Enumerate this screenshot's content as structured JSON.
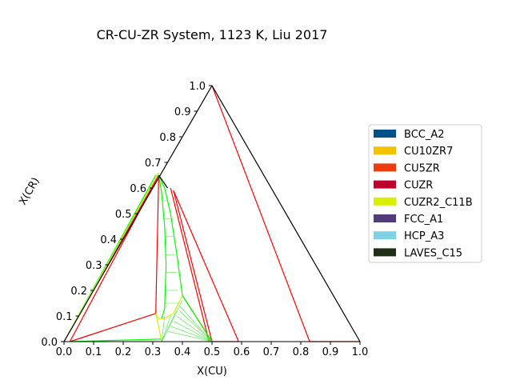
{
  "chart_data": {
    "type": "ternary",
    "title": "CR-CU-ZR System, 1123 K, Liu 2017",
    "xlabel": "X(CU)",
    "ylabel": "X(CR)",
    "x_ticks": [
      "0.0",
      "0.1",
      "0.2",
      "0.3",
      "0.4",
      "0.5",
      "0.6",
      "0.7",
      "0.8",
      "0.9",
      "1.0"
    ],
    "y_ticks": [
      "0.0",
      "0.1",
      "0.2",
      "0.3",
      "0.4",
      "0.5",
      "0.6",
      "0.7",
      "0.8",
      "0.9",
      "1.0"
    ],
    "legend": [
      {
        "name": "BCC_A2",
        "color": "#00508a"
      },
      {
        "name": "CU10ZR7",
        "color": "#f3c300"
      },
      {
        "name": "CU5ZR",
        "color": "#ef3b10"
      },
      {
        "name": "CUZR",
        "color": "#c0002c"
      },
      {
        "name": "CUZR2_C11B",
        "color": "#d8f000"
      },
      {
        "name": "FCC_A1",
        "color": "#533a79"
      },
      {
        "name": "HCP_A3",
        "color": "#7fd1e8"
      },
      {
        "name": "LAVES_C15",
        "color": "#1f2f14"
      }
    ],
    "phase_boundaries": [
      {
        "color": "#ff0000",
        "points": [
          [
            0.5,
            1.0
          ],
          [
            0.83,
            0.0
          ]
        ]
      },
      {
        "color": "#ff0000",
        "points": [
          [
            0.37,
            0.59
          ],
          [
            0.59,
            0.0
          ]
        ]
      },
      {
        "color": "#ff0000",
        "points": [
          [
            0.36,
            0.6
          ],
          [
            0.49,
            0.0
          ]
        ]
      },
      {
        "color": "#ff0000",
        "points": [
          [
            0.37,
            0.59
          ],
          [
            0.5,
            0.0
          ]
        ]
      },
      {
        "color": "#ff0000",
        "points": [
          [
            0.31,
            0.11
          ],
          [
            0.02,
            0.0
          ]
        ]
      },
      {
        "color": "#ff0000",
        "points": [
          [
            0.31,
            0.11
          ],
          [
            0.32,
            0.65
          ]
        ]
      },
      {
        "color": "#ff0000",
        "points": [
          [
            0.5,
            0.0
          ],
          [
            0.59,
            0.0
          ]
        ]
      },
      {
        "color": "#ff0000",
        "points": [
          [
            0.83,
            0.0
          ],
          [
            1.0,
            0.0
          ]
        ]
      },
      {
        "color": "#ff0000",
        "points": [
          [
            0.4,
            0.18
          ],
          [
            0.5,
            0.0
          ]
        ]
      },
      {
        "color": "#ff0000",
        "points": [
          [
            0.0,
            0.0
          ],
          [
            0.32,
            0.65
          ]
        ]
      },
      {
        "color": "#ff0000",
        "points": [
          [
            0.02,
            0.0
          ],
          [
            0.32,
            0.65
          ]
        ]
      },
      {
        "color": "#00ff00",
        "points": [
          [
            0.32,
            0.65
          ],
          [
            0.33,
            0.58
          ],
          [
            0.34,
            0.45
          ],
          [
            0.345,
            0.3
          ],
          [
            0.34,
            0.13
          ],
          [
            0.33,
            0.09
          ]
        ]
      },
      {
        "color": "#00ff00",
        "points": [
          [
            0.32,
            0.65
          ],
          [
            0.34,
            0.6
          ],
          [
            0.36,
            0.5
          ],
          [
            0.38,
            0.35
          ],
          [
            0.4,
            0.18
          ]
        ]
      },
      {
        "color": "#00ff00",
        "points": [
          [
            0.4,
            0.18
          ],
          [
            0.5,
            0.0
          ]
        ]
      },
      {
        "color": "#00ff00",
        "points": [
          [
            0.02,
            0.0
          ],
          [
            0.33,
            0.01
          ]
        ]
      },
      {
        "color": "#00ff00",
        "points": [
          [
            0.0,
            0.0
          ],
          [
            0.31,
            0.65
          ]
        ]
      },
      {
        "color": "#d8f000",
        "points": [
          [
            0.31,
            0.11
          ],
          [
            0.32,
            0.09
          ],
          [
            0.34,
            0.09
          ],
          [
            0.37,
            0.11
          ],
          [
            0.4,
            0.18
          ]
        ]
      },
      {
        "color": "#d8f000",
        "points": [
          [
            0.31,
            0.11
          ],
          [
            0.33,
            0.0
          ]
        ]
      },
      {
        "color": "#d8f000",
        "points": [
          [
            0.0,
            0.0
          ],
          [
            0.32,
            0.66
          ]
        ]
      },
      {
        "color": "#000000",
        "points": [
          [
            0.0,
            0.0
          ],
          [
            0.5,
            1.0
          ]
        ]
      },
      {
        "color": "#000000",
        "points": [
          [
            0.5,
            1.0
          ],
          [
            1.0,
            0.0
          ]
        ]
      },
      {
        "color": "#000000",
        "points": [
          [
            0.32,
            0.65
          ],
          [
            0.35,
            0.6
          ]
        ]
      }
    ],
    "tie_line_fans": [
      {
        "color": "#44ee44",
        "apex": [
          0.33,
          0.0
        ],
        "ends": [
          [
            0.34,
            0.1
          ],
          [
            0.36,
            0.1
          ],
          [
            0.38,
            0.12
          ],
          [
            0.4,
            0.16
          ]
        ]
      },
      {
        "color": "#44ee44",
        "apex": [
          0.5,
          0.0
        ],
        "ends": [
          [
            0.39,
            0.14
          ],
          [
            0.39,
            0.12
          ],
          [
            0.38,
            0.1
          ],
          [
            0.37,
            0.08
          ],
          [
            0.36,
            0.06
          ],
          [
            0.35,
            0.04
          ]
        ]
      },
      {
        "color": "#44ee44",
        "from": [
          [
            0.325,
            0.62
          ],
          [
            0.33,
            0.55
          ],
          [
            0.335,
            0.48
          ],
          [
            0.34,
            0.41
          ],
          [
            0.34,
            0.34
          ],
          [
            0.345,
            0.27
          ],
          [
            0.345,
            0.2
          ],
          [
            0.34,
            0.15
          ]
        ],
        "to": [
          [
            0.335,
            0.62
          ],
          [
            0.35,
            0.55
          ],
          [
            0.36,
            0.48
          ],
          [
            0.37,
            0.41
          ],
          [
            0.375,
            0.34
          ],
          [
            0.38,
            0.27
          ],
          [
            0.385,
            0.2
          ],
          [
            0.39,
            0.15
          ]
        ]
      }
    ]
  }
}
